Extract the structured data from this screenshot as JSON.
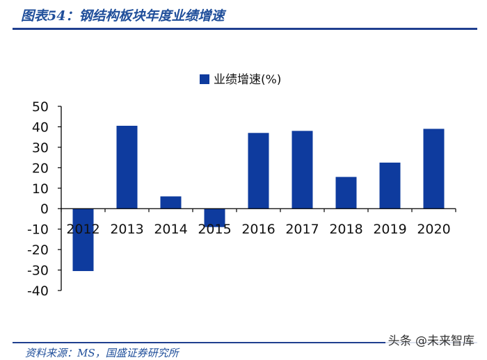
{
  "header": {
    "title": "图表54：钢结构板块年度业绩增速"
  },
  "source_text": "资料来源：MS，国盛证券研究所",
  "watermark": "头条 @未来智库",
  "colors": {
    "bar": "#0e3b9e",
    "title": "#1f4e9a",
    "rule": "#1f3f8f",
    "axis": "#000000"
  },
  "chart_data": {
    "type": "bar",
    "categories": [
      "2012",
      "2013",
      "2014",
      "2015",
      "2016",
      "2017",
      "2018",
      "2019",
      "2020"
    ],
    "series": [
      {
        "name": "业绩增速(%)",
        "values": [
          -30.5,
          40.5,
          6,
          -9,
          37,
          38,
          15.5,
          22.5,
          39
        ]
      }
    ],
    "ylim": [
      -40,
      50
    ],
    "yticks": [
      "50",
      "40",
      "30",
      "20",
      "10",
      "0",
      "-10",
      "-20",
      "-30",
      "-40"
    ],
    "legend_position": "top-center",
    "grid": false
  }
}
